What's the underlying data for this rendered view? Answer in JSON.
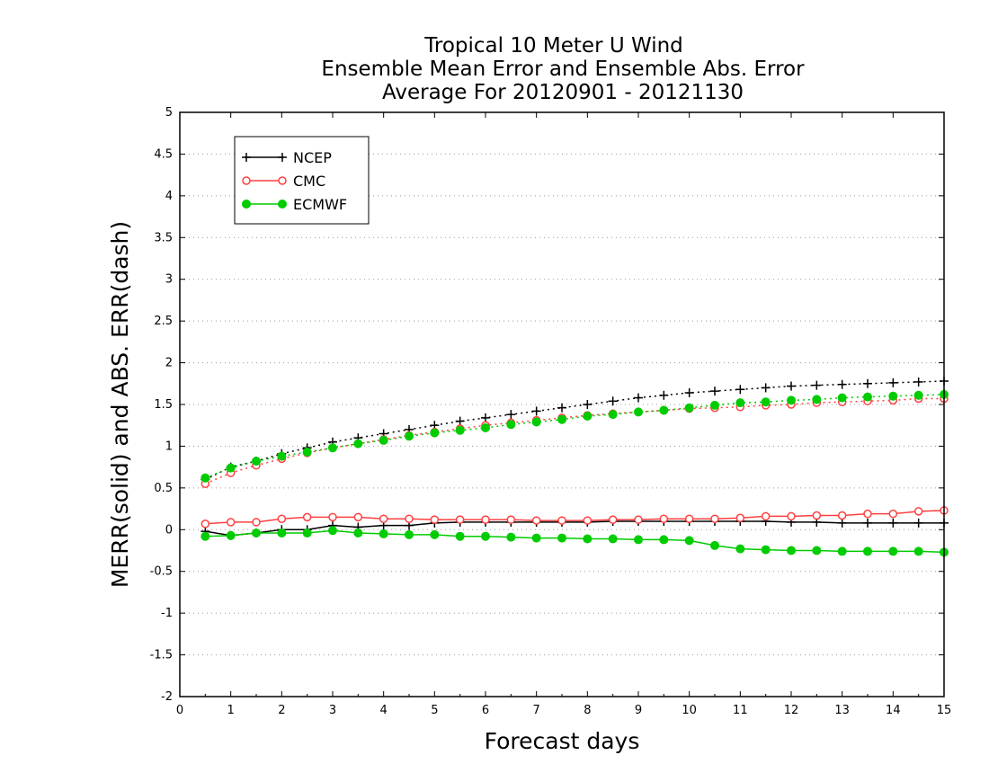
{
  "chart_data": {
    "type": "line",
    "title_lines": [
      "Tropical 10 Meter U Wind",
      "Ensemble Mean Error and Ensemble Abs. Error",
      "Average For 20120901 - 20121130"
    ],
    "xlabel": "Forecast days",
    "ylabel": "MERR(solid) and ABS. ERR(dash)",
    "xlim": [
      0,
      15
    ],
    "ylim": [
      -2,
      5
    ],
    "xticks": [
      "0",
      "1",
      "2",
      "3",
      "4",
      "5",
      "6",
      "7",
      "8",
      "9",
      "10",
      "11",
      "12",
      "13",
      "14",
      "15"
    ],
    "yticks": [
      "-2",
      "-1.5",
      "-1",
      "-0.5",
      "0",
      "0.5",
      "1",
      "1.5",
      "2",
      "2.5",
      "3",
      "3.5",
      "4",
      "4.5",
      "5"
    ],
    "grid": "horizontal dotted",
    "legend_position": "top-left",
    "x": [
      0.5,
      1,
      1.5,
      2,
      2.5,
      3,
      3.5,
      4,
      4.5,
      5,
      5.5,
      6,
      6.5,
      7,
      7.5,
      8,
      8.5,
      9,
      9.5,
      10,
      10.5,
      11,
      11.5,
      12,
      12.5,
      13,
      13.5,
      14,
      14.5,
      15
    ],
    "series": [
      {
        "name": "NCEP",
        "color": "#000000",
        "marker": "plus",
        "merr": [
          -0.02,
          -0.07,
          -0.04,
          0.0,
          0.0,
          0.05,
          0.03,
          0.05,
          0.05,
          0.08,
          0.09,
          0.09,
          0.09,
          0.09,
          0.09,
          0.09,
          0.1,
          0.1,
          0.1,
          0.1,
          0.1,
          0.1,
          0.1,
          0.09,
          0.09,
          0.08,
          0.08,
          0.08,
          0.08,
          0.08
        ],
        "abs_err": [
          0.6,
          0.75,
          0.82,
          0.91,
          0.98,
          1.05,
          1.1,
          1.15,
          1.2,
          1.25,
          1.3,
          1.34,
          1.38,
          1.42,
          1.46,
          1.5,
          1.54,
          1.58,
          1.61,
          1.64,
          1.66,
          1.68,
          1.7,
          1.72,
          1.73,
          1.74,
          1.75,
          1.76,
          1.77,
          1.78
        ]
      },
      {
        "name": "CMC",
        "color": "#ff4040",
        "marker": "open-circle",
        "merr": [
          0.07,
          0.09,
          0.09,
          0.13,
          0.15,
          0.15,
          0.15,
          0.13,
          0.13,
          0.12,
          0.12,
          0.12,
          0.12,
          0.11,
          0.11,
          0.11,
          0.12,
          0.12,
          0.13,
          0.13,
          0.13,
          0.14,
          0.16,
          0.16,
          0.17,
          0.17,
          0.19,
          0.19,
          0.22,
          0.23
        ],
        "abs_err": [
          0.55,
          0.68,
          0.77,
          0.85,
          0.92,
          0.98,
          1.03,
          1.08,
          1.13,
          1.17,
          1.21,
          1.25,
          1.28,
          1.31,
          1.34,
          1.37,
          1.39,
          1.41,
          1.43,
          1.45,
          1.46,
          1.47,
          1.49,
          1.5,
          1.52,
          1.53,
          1.54,
          1.55,
          1.57,
          1.57
        ]
      },
      {
        "name": "ECMWF",
        "color": "#00cc00",
        "marker": "filled-circle",
        "merr": [
          -0.08,
          -0.07,
          -0.04,
          -0.04,
          -0.04,
          -0.01,
          -0.04,
          -0.05,
          -0.06,
          -0.06,
          -0.08,
          -0.08,
          -0.09,
          -0.1,
          -0.1,
          -0.11,
          -0.11,
          -0.12,
          -0.12,
          -0.13,
          -0.19,
          -0.23,
          -0.24,
          -0.25,
          -0.25,
          -0.26,
          -0.26,
          -0.26,
          -0.26,
          -0.27
        ],
        "abs_err": [
          0.62,
          0.74,
          0.82,
          0.88,
          0.93,
          0.98,
          1.03,
          1.07,
          1.12,
          1.16,
          1.19,
          1.22,
          1.26,
          1.29,
          1.32,
          1.36,
          1.38,
          1.41,
          1.43,
          1.46,
          1.49,
          1.52,
          1.53,
          1.55,
          1.56,
          1.58,
          1.59,
          1.6,
          1.61,
          1.62
        ]
      }
    ]
  }
}
